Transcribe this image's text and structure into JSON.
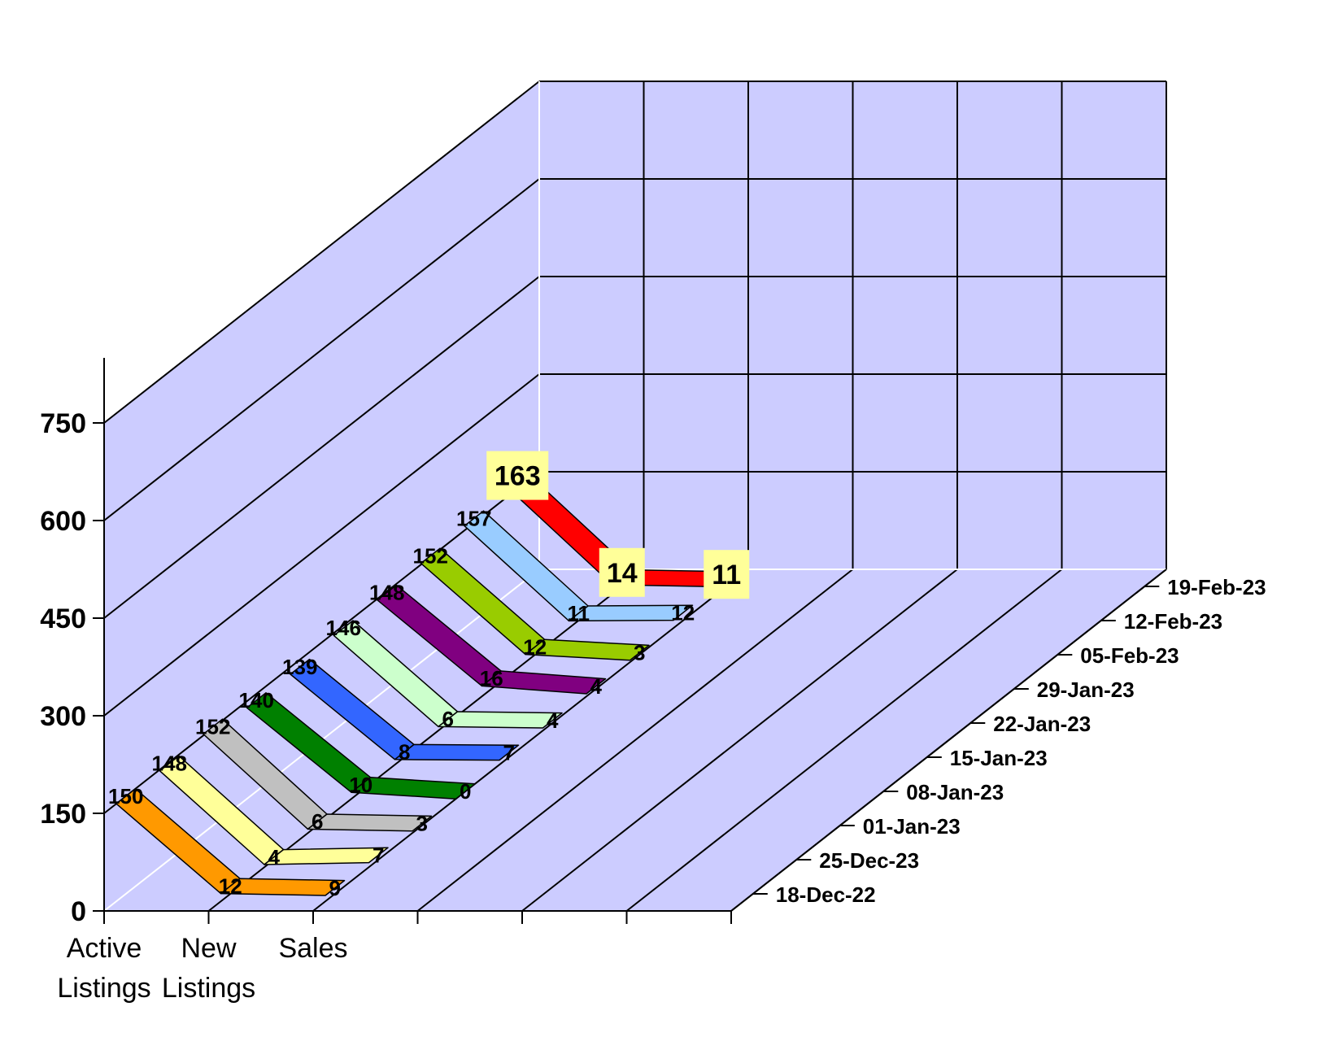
{
  "chart_data": {
    "type": "line",
    "subtype": "3d-ribbon",
    "title": "",
    "xlabel": "",
    "ylabel": "",
    "ylim": [
      0,
      750
    ],
    "yticks": [
      "0",
      "150",
      "300",
      "450",
      "600",
      "750"
    ],
    "categories": [
      {
        "line1": "Active",
        "line2": "Listings"
      },
      {
        "line1": "New",
        "line2": "Listings"
      },
      {
        "line1": "Sales",
        "line2": ""
      }
    ],
    "series": [
      {
        "name": "18-Dec-22",
        "values": [
          150,
          12,
          9
        ],
        "labels": [
          "150",
          "12",
          "9"
        ],
        "color": "#ff9900"
      },
      {
        "name": "25-Dec-23",
        "values": [
          148,
          4,
          7
        ],
        "labels": [
          "148",
          "4",
          "7"
        ],
        "color": "#ffff99"
      },
      {
        "name": "01-Jan-23",
        "values": [
          152,
          6,
          3
        ],
        "labels": [
          "152",
          "6",
          "3"
        ],
        "color": "#c0c0c0"
      },
      {
        "name": "08-Jan-23",
        "values": [
          140,
          10,
          0
        ],
        "labels": [
          "140",
          "10",
          "0"
        ],
        "color": "#008000"
      },
      {
        "name": "15-Jan-23",
        "values": [
          139,
          8,
          7
        ],
        "labels": [
          "139",
          "8",
          "7"
        ],
        "color": "#3366ff"
      },
      {
        "name": "22-Jan-23",
        "values": [
          146,
          6,
          4
        ],
        "labels": [
          "146",
          "6",
          "4"
        ],
        "color": "#ccffcc"
      },
      {
        "name": "29-Jan-23",
        "values": [
          148,
          16,
          4
        ],
        "labels": [
          "148",
          "16",
          "4"
        ],
        "color": "#800080"
      },
      {
        "name": "05-Feb-23",
        "values": [
          152,
          12,
          3
        ],
        "labels": [
          "152",
          "12",
          "3"
        ],
        "color": "#99cc00"
      },
      {
        "name": "12-Feb-23",
        "values": [
          157,
          11,
          12
        ],
        "labels": [
          "157",
          "11",
          "12"
        ],
        "color": "#99ccff"
      },
      {
        "name": "19-Feb-23",
        "values": [
          163,
          14,
          11
        ],
        "labels": [
          "163",
          "14",
          "11"
        ],
        "color": "#ff0000",
        "highlight": true
      }
    ],
    "grid": true,
    "wall_color": "#ccccff",
    "highlight_label_color": "#ffff99"
  }
}
